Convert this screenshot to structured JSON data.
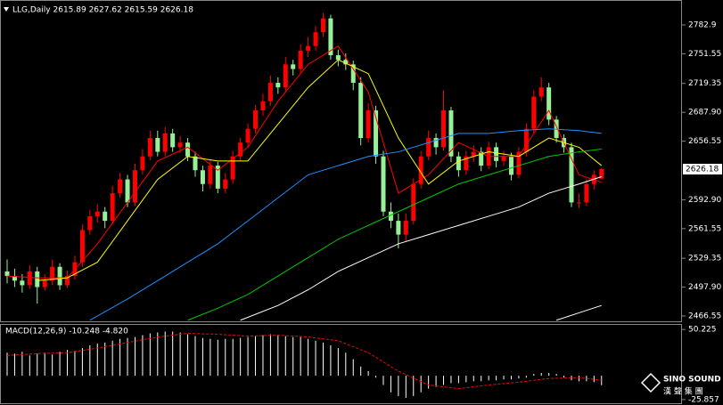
{
  "chart_data": {
    "type": "candlestick",
    "header": "LLG,Daily  2615.89 2627.62 2615.59 2626.18",
    "ylim": [
      2459.8,
      2810.0
    ],
    "yticks": [
      2782.9,
      2751.55,
      2719.35,
      {
        "value": 2687.9,
        "label": "2687.90"
      },
      2656.55,
      {
        "value": 2592.9,
        "label": "2592.90"
      },
      2561.55,
      2529.35,
      {
        "value": 2497.9,
        "label": "2497.90"
      },
      2466.55
    ],
    "last_price": 2626.18,
    "up_color": "#ff0000",
    "down_color": "#98f098",
    "ohlc": [
      [
        2515,
        2528,
        2502,
        2510
      ],
      [
        2510,
        2518,
        2498,
        2505
      ],
      [
        2505,
        2512,
        2492,
        2500
      ],
      [
        2500,
        2522,
        2496,
        2515
      ],
      [
        2515,
        2520,
        2480,
        2498
      ],
      [
        2498,
        2512,
        2494,
        2505
      ],
      [
        2505,
        2528,
        2500,
        2520
      ],
      [
        2520,
        2524,
        2495,
        2500
      ],
      [
        2500,
        2516,
        2497,
        2510
      ],
      [
        2510,
        2532,
        2506,
        2525
      ],
      [
        2525,
        2566,
        2520,
        2560
      ],
      [
        2560,
        2582,
        2555,
        2575
      ],
      [
        2575,
        2588,
        2568,
        2580
      ],
      [
        2580,
        2585,
        2562,
        2570
      ],
      [
        2570,
        2608,
        2566,
        2600
      ],
      [
        2600,
        2622,
        2595,
        2615
      ],
      [
        2615,
        2620,
        2585,
        2590
      ],
      [
        2590,
        2632,
        2586,
        2625
      ],
      [
        2625,
        2648,
        2620,
        2640
      ],
      [
        2640,
        2668,
        2636,
        2660
      ],
      [
        2660,
        2668,
        2640,
        2645
      ],
      [
        2645,
        2672,
        2640,
        2665
      ],
      [
        2665,
        2670,
        2645,
        2650
      ],
      [
        2650,
        2662,
        2644,
        2655
      ],
      [
        2655,
        2660,
        2635,
        2640
      ],
      [
        2640,
        2645,
        2618,
        2625
      ],
      [
        2625,
        2630,
        2602,
        2610
      ],
      [
        2610,
        2636,
        2605,
        2630
      ],
      [
        2630,
        2634,
        2600,
        2605
      ],
      [
        2605,
        2622,
        2600,
        2615
      ],
      [
        2615,
        2646,
        2610,
        2640
      ],
      [
        2640,
        2660,
        2635,
        2655
      ],
      [
        2655,
        2676,
        2650,
        2670
      ],
      [
        2670,
        2696,
        2665,
        2690
      ],
      [
        2690,
        2708,
        2684,
        2700
      ],
      [
        2700,
        2728,
        2695,
        2720
      ],
      [
        2720,
        2726,
        2708,
        2715
      ],
      [
        2715,
        2748,
        2710,
        2740
      ],
      [
        2740,
        2745,
        2728,
        2735
      ],
      [
        2735,
        2762,
        2730,
        2755
      ],
      [
        2755,
        2770,
        2748,
        2760
      ],
      [
        2760,
        2782,
        2755,
        2775
      ],
      [
        2775,
        2796,
        2770,
        2790
      ],
      [
        2790,
        2794,
        2745,
        2750
      ],
      [
        2750,
        2756,
        2738,
        2745
      ],
      [
        2745,
        2752,
        2734,
        2740
      ],
      [
        2740,
        2744,
        2712,
        2720
      ],
      [
        2720,
        2726,
        2652,
        2660
      ],
      [
        2660,
        2698,
        2655,
        2690
      ],
      [
        2690,
        2695,
        2632,
        2640
      ],
      [
        2640,
        2646,
        2575,
        2580
      ],
      [
        2580,
        2590,
        2562,
        2570
      ],
      [
        2570,
        2578,
        2540,
        2555
      ],
      [
        2555,
        2578,
        2548,
        2570
      ],
      [
        2570,
        2616,
        2566,
        2610
      ],
      [
        2610,
        2646,
        2605,
        2640
      ],
      [
        2640,
        2668,
        2636,
        2660
      ],
      [
        2660,
        2665,
        2642,
        2650
      ],
      [
        2650,
        2712,
        2646,
        2690
      ],
      [
        2690,
        2694,
        2634,
        2640
      ],
      [
        2640,
        2645,
        2618,
        2625
      ],
      [
        2625,
        2646,
        2620,
        2640
      ],
      [
        2640,
        2652,
        2634,
        2645
      ],
      [
        2645,
        2650,
        2624,
        2630
      ],
      [
        2630,
        2656,
        2626,
        2650
      ],
      [
        2650,
        2655,
        2628,
        2635
      ],
      [
        2635,
        2646,
        2630,
        2640
      ],
      [
        2640,
        2644,
        2614,
        2620
      ],
      [
        2620,
        2650,
        2616,
        2645
      ],
      [
        2645,
        2676,
        2640,
        2670
      ],
      [
        2670,
        2712,
        2665,
        2705
      ],
      [
        2705,
        2726,
        2700,
        2715
      ],
      [
        2715,
        2720,
        2674,
        2680
      ],
      [
        2680,
        2684,
        2655,
        2660
      ],
      [
        2660,
        2664,
        2644,
        2650
      ],
      [
        2650,
        2655,
        2585,
        2590
      ],
      [
        2590,
        2600,
        2584,
        2590
      ],
      [
        2590,
        2616,
        2586,
        2610
      ],
      [
        2610,
        2625,
        2604,
        2620
      ],
      [
        2615.89,
        2627.62,
        2615.59,
        2626.18
      ]
    ],
    "series": [
      {
        "color": "#ff0000",
        "x": [
          0,
          4,
          8,
          12,
          16,
          20,
          24,
          28,
          32,
          36,
          40,
          44,
          48,
          52,
          56,
          60,
          64,
          68,
          72,
          76,
          79
        ],
        "values": [
          2510,
          2508,
          2508,
          2545,
          2590,
          2635,
          2650,
          2625,
          2650,
          2700,
          2740,
          2760,
          2710,
          2600,
          2620,
          2655,
          2640,
          2640,
          2690,
          2620,
          2612
        ]
      },
      {
        "color": "#ffff00",
        "x": [
          4,
          8,
          12,
          16,
          20,
          24,
          28,
          32,
          36,
          40,
          44,
          48,
          52,
          56,
          60,
          64,
          68,
          72,
          76,
          79
        ],
        "values": [
          2505,
          2508,
          2525,
          2570,
          2615,
          2640,
          2635,
          2635,
          2675,
          2715,
          2745,
          2730,
          2660,
          2610,
          2635,
          2645,
          2640,
          2660,
          2650,
          2630
        ]
      },
      {
        "color": "#1e90ff",
        "x": [
          11,
          16,
          20,
          24,
          28,
          32,
          36,
          40,
          44,
          48,
          52,
          56,
          60,
          64,
          68,
          72,
          76,
          79
        ],
        "values": [
          2462,
          2485,
          2505,
          2525,
          2545,
          2570,
          2595,
          2620,
          2630,
          2640,
          2645,
          2655,
          2665,
          2665,
          2668,
          2670,
          2668,
          2665
        ]
      },
      {
        "color": "#00c800",
        "x": [
          24,
          28,
          32,
          36,
          40,
          44,
          48,
          52,
          56,
          60,
          64,
          68,
          72,
          76,
          79
        ],
        "values": [
          2462,
          2475,
          2490,
          2510,
          2530,
          2550,
          2565,
          2580,
          2595,
          2610,
          2620,
          2630,
          2640,
          2645,
          2648
        ]
      },
      {
        "color": "#ffffff",
        "x": [
          31,
          36,
          40,
          44,
          48,
          52,
          56,
          60,
          64,
          68,
          72,
          76,
          79
        ],
        "values": [
          2462,
          2478,
          2495,
          2515,
          2530,
          2545,
          2555,
          2565,
          2575,
          2585,
          2600,
          2610,
          2618
        ]
      },
      {
        "color": "#ffffff",
        "x": [
          73,
          76,
          79
        ],
        "values": [
          2462,
          2470,
          2478
        ]
      }
    ],
    "macd": {
      "label": "MACD(12,26,9) -10.248 -4.820",
      "ylim": [
        -29.81,
        55.17
      ],
      "yticks": [
        50.225,
        -25.857
      ],
      "histogram": [
        25,
        24,
        26,
        22,
        24,
        25,
        23,
        26,
        28,
        27,
        30,
        33,
        35,
        36,
        38,
        40,
        41,
        42,
        44,
        46,
        47,
        48,
        48,
        47,
        45,
        43,
        41,
        40,
        39,
        40,
        40,
        41,
        42,
        43,
        44,
        45,
        44,
        43,
        42,
        42,
        40,
        38,
        36,
        33,
        30,
        25,
        18,
        10,
        5,
        -2,
        -10,
        -18,
        -22,
        -24,
        -22,
        -18,
        -14,
        -12,
        -10,
        -8,
        -8,
        -7,
        -6,
        -6,
        -5,
        -5,
        -4,
        -4,
        -3,
        -2,
        2,
        3,
        3,
        2,
        -2,
        -5,
        -6,
        -6,
        -7,
        -10.248
      ],
      "signal_x": [
        0,
        4,
        8,
        12,
        16,
        20,
        24,
        28,
        32,
        36,
        40,
        44,
        48,
        52,
        56,
        60,
        64,
        68,
        72,
        76,
        79
      ],
      "signal": [
        22,
        24,
        25,
        30,
        36,
        42,
        46,
        45,
        43,
        44,
        42,
        38,
        25,
        5,
        -10,
        -14,
        -10,
        -7,
        -3,
        -2,
        -4.82
      ],
      "signal_color": "#ff0000"
    },
    "logo": {
      "name": "SINO SOUND",
      "subtitle": "漢 聲 集 團"
    }
  }
}
